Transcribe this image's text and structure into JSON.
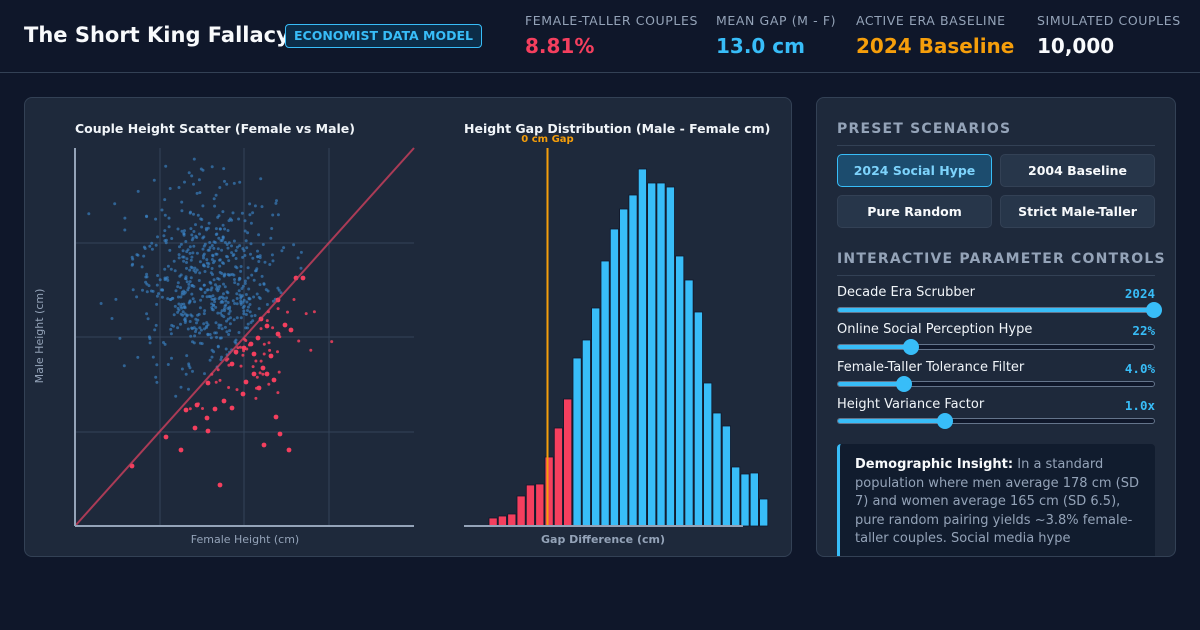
{
  "header": {
    "title": "The Short King Fallacy",
    "badge": "ECONOMIST DATA MODEL",
    "stats": [
      {
        "label": "FEMALE-TALLER COUPLES",
        "value": "8.81%",
        "color": "#f43f5e"
      },
      {
        "label": "MEAN GAP (M - F)",
        "value": "13.0 cm",
        "color": "#38bdf8"
      },
      {
        "label": "ACTIVE ERA BASELINE",
        "value": "2024 Baseline",
        "color": "#f59e0b"
      },
      {
        "label": "SIMULATED COUPLES",
        "value": "10,000",
        "color": "#f8fafc"
      }
    ]
  },
  "scatter": {
    "title": "Couple Height Scatter (Female vs Male)",
    "xlabel": "Female Height (cm)",
    "ylabel": "Male Height (cm)"
  },
  "histogram": {
    "title": "Height Gap Distribution (Male - Female cm)",
    "xlabel": "Gap Difference (cm)",
    "marker_label": "0 cm Gap"
  },
  "chart_data": [
    {
      "type": "scatter",
      "title": "Couple Height Scatter (Female vs Male)",
      "xlabel": "Female Height (cm)",
      "ylabel": "Male Height (cm)",
      "diagonal_line": "male height = female height",
      "series": [
        {
          "name": "",
          "color": "#3b82c4",
          "points": []
        },
        {
          "name": "",
          "color": "#f43f5e",
          "points": []
        }
      ]
    },
    {
      "type": "bar",
      "title": "Height Gap Distribution (Male - Female cm)",
      "xlabel": "Gap Difference (cm)",
      "marker": {
        "x": 0,
        "label": "0 cm Gap",
        "color": "#f59e0b"
      },
      "series": [
        {
          "name": "",
          "color": "#f43f5e",
          "values": [
            8,
            10,
            12,
            30,
            41,
            42,
            69,
            98,
            127
          ]
        },
        {
          "name": "",
          "color": "#38bdf8",
          "values": [
            168,
            186,
            218,
            265,
            297,
            317,
            331,
            357,
            343,
            343,
            339,
            270,
            246,
            214,
            143,
            113,
            100,
            59,
            52,
            53,
            27
          ]
        }
      ]
    }
  ],
  "controls": {
    "scenarios_title": "PRESET SCENARIOS",
    "scenarios": [
      {
        "label": "2024 Social Hype",
        "active": true
      },
      {
        "label": "2004 Baseline",
        "active": false
      },
      {
        "label": "Pure Random",
        "active": false
      },
      {
        "label": "Strict Male-Taller",
        "active": false
      }
    ],
    "parameters_title": "INTERACTIVE PARAMETER CONTROLS",
    "sliders": [
      {
        "label": "Decade Era Scrubber",
        "value": "2024",
        "position_percent": 100
      },
      {
        "label": "Online Social Perception Hype",
        "value": "22%",
        "position_percent": 23
      },
      {
        "label": "Female-Taller Tolerance Filter",
        "value": "4.0%",
        "position_percent": 21
      },
      {
        "label": "Height Variance Factor",
        "value": "1.0x",
        "position_percent": 34
      }
    ],
    "insight": {
      "heading": "Demographic Insight:",
      "text": "In a standard population where men average 178 cm (SD 7) and women average 165 cm (SD 6.5), pure random pairing yields ~3.8% female-taller couples. Social media hype"
    }
  }
}
